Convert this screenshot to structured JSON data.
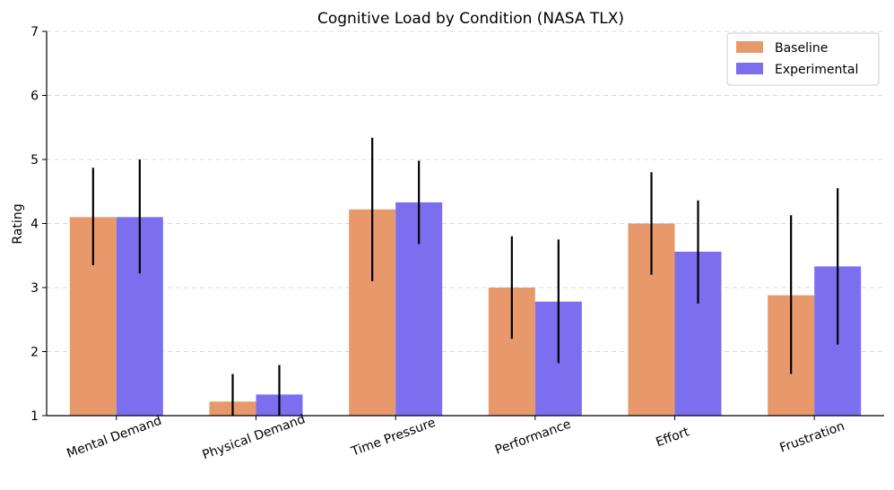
{
  "chart_data": {
    "type": "bar",
    "title": "Cognitive Load by Condition (NASA TLX)",
    "xlabel": "",
    "ylabel": "Rating",
    "ylim": [
      1,
      7
    ],
    "yticks": [
      1,
      2,
      3,
      4,
      5,
      6,
      7
    ],
    "grid": "y-dashed",
    "legend": "top-right",
    "categories": [
      "Mental Demand",
      "Physical Demand",
      "Time Pressure",
      "Performance",
      "Effort",
      "Frustration"
    ],
    "series": [
      {
        "name": "Baseline",
        "color": "#e8996b",
        "values": [
          4.1,
          1.22,
          4.22,
          3.0,
          4.0,
          2.88
        ],
        "err_low": [
          3.35,
          1.0,
          3.1,
          2.2,
          3.2,
          1.65
        ],
        "err_high": [
          4.87,
          1.65,
          5.34,
          3.8,
          4.8,
          4.13
        ]
      },
      {
        "name": "Experimental",
        "color": "#7b6ff0",
        "values": [
          4.1,
          1.33,
          4.33,
          2.78,
          3.56,
          3.33
        ],
        "err_low": [
          3.22,
          1.0,
          3.68,
          1.82,
          2.75,
          2.11
        ],
        "err_high": [
          5.0,
          1.79,
          4.98,
          3.75,
          4.36,
          4.55
        ]
      }
    ]
  }
}
